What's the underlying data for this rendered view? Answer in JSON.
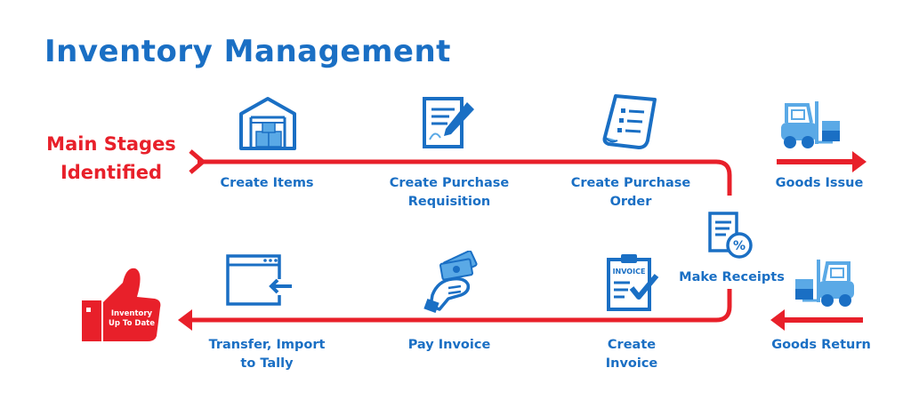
{
  "title": "Inventory Management",
  "main_stages": {
    "line1": "Main Stages",
    "line2": "Identified"
  },
  "stages": {
    "create_items": "Create Items",
    "create_pr_1": "Create Purchase",
    "create_pr_2": "Requisition",
    "create_po_1": "Create Purchase",
    "create_po_2": "Order",
    "goods_issue": "Goods Issue",
    "make_receipts": "Make Receipts",
    "goods_return": "Goods Return",
    "create_invoice_1": "Create",
    "create_invoice_2": "Invoice",
    "pay_invoice": "Pay Invoice",
    "transfer_1": "Transfer, Import",
    "transfer_2": "to Tally"
  },
  "thumb": {
    "line1": "Inventory",
    "line2": "Up To Date"
  },
  "invoice_icon_label": "INVOICE",
  "colors": {
    "blue": "#1a6fc4",
    "red": "#e8202a",
    "light_blue": "#5aa9e6"
  },
  "icons": [
    "warehouse-icon",
    "requisition-icon",
    "purchase-order-icon",
    "forklift-icon",
    "receipt-icon",
    "invoice-icon",
    "pay-invoice-icon",
    "transfer-icon",
    "thumbs-up-icon"
  ]
}
